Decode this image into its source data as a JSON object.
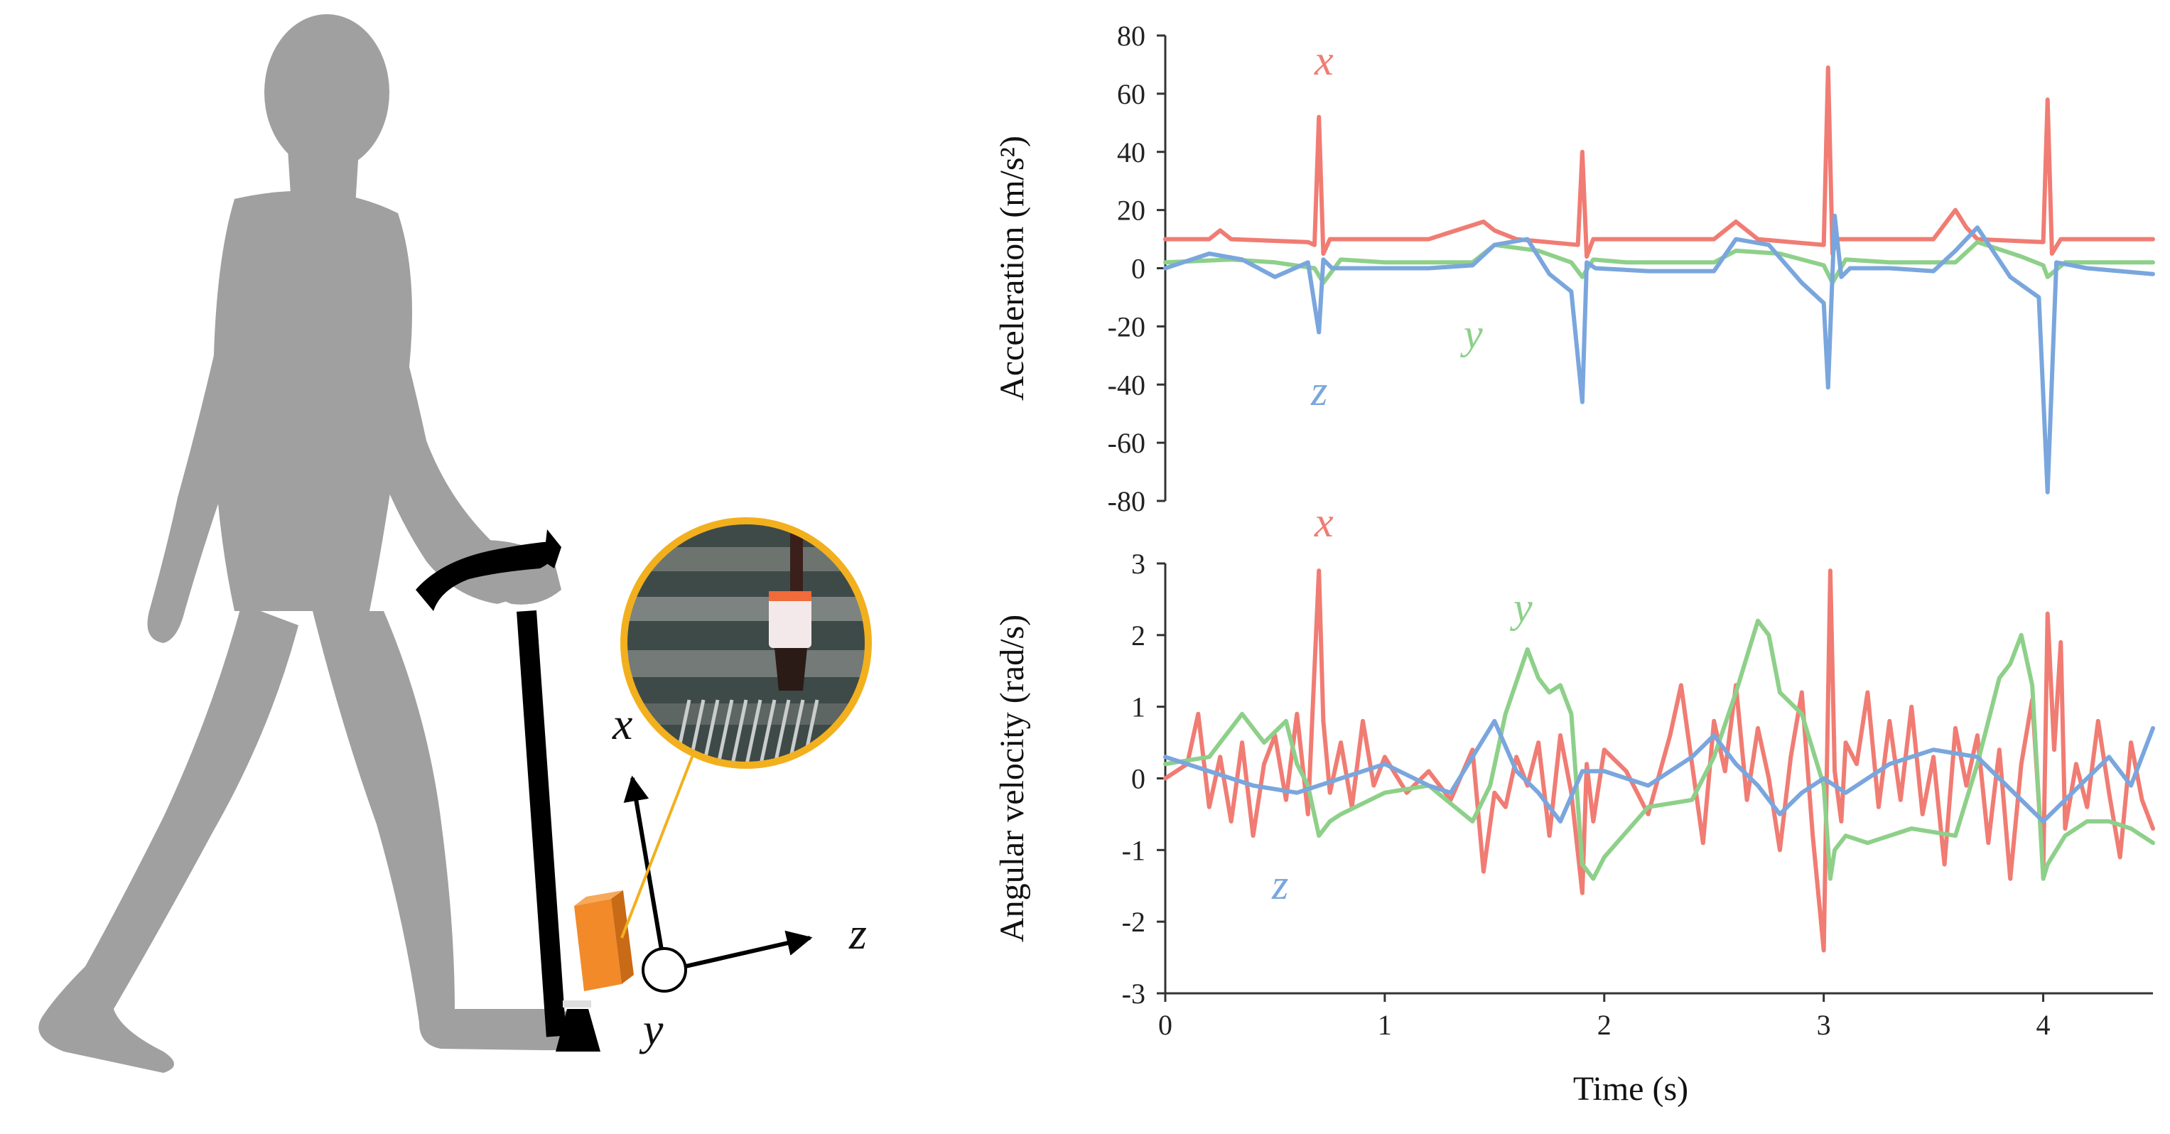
{
  "colors": {
    "x": "#f07c73",
    "y": "#8ed08a",
    "z": "#7aa6dd",
    "silhouette": "#a0a0a0",
    "sensor": "#f28a2a",
    "lens_ring": "#f2b01e"
  },
  "illustration": {
    "axis_x": "x",
    "axis_y": "y",
    "axis_z": "z",
    "icons": [
      "walking-person-silhouette",
      "cane",
      "imu-sensor",
      "photo-inset"
    ]
  },
  "chart_data": [
    {
      "type": "line",
      "ylabel": "Acceleration (m/s²)",
      "xlabel": "",
      "xlim": [
        0,
        4.5
      ],
      "ylim": [
        -80,
        80
      ],
      "yticks": [
        80,
        60,
        40,
        20,
        0,
        -20,
        -40,
        -60,
        -80
      ],
      "series_labels": [
        {
          "name": "x"
        },
        {
          "name": "y"
        },
        {
          "name": "z"
        }
      ],
      "series": [
        {
          "name": "x",
          "x": [
            0,
            0.2,
            0.25,
            0.3,
            0.65,
            0.68,
            0.7,
            0.72,
            0.75,
            1.2,
            1.45,
            1.5,
            1.6,
            1.88,
            1.9,
            1.92,
            1.95,
            2.5,
            2.6,
            2.7,
            3.0,
            3.02,
            3.04,
            3.06,
            3.1,
            3.5,
            3.6,
            3.65,
            3.7,
            4.0,
            4.02,
            4.04,
            4.08,
            4.5
          ],
          "values": [
            10,
            10,
            13,
            10,
            9,
            8,
            52,
            5,
            10,
            10,
            16,
            13,
            10,
            8,
            40,
            4,
            10,
            10,
            16,
            10,
            8,
            69,
            5,
            10,
            10,
            10,
            20,
            14,
            10,
            9,
            58,
            5,
            10,
            10
          ]
        },
        {
          "name": "y",
          "x": [
            0,
            0.3,
            0.5,
            0.68,
            0.72,
            0.8,
            1.0,
            1.4,
            1.5,
            1.7,
            1.85,
            1.9,
            1.95,
            2.1,
            2.5,
            2.6,
            2.8,
            3.0,
            3.04,
            3.1,
            3.3,
            3.6,
            3.7,
            3.9,
            4.0,
            4.02,
            4.1,
            4.5
          ],
          "values": [
            2,
            3,
            2,
            0,
            -5,
            3,
            2,
            2,
            8,
            6,
            2,
            -3,
            3,
            2,
            2,
            6,
            5,
            1,
            -5,
            3,
            2,
            2,
            9,
            4,
            1,
            -3,
            2,
            2
          ]
        },
        {
          "name": "z",
          "x": [
            0,
            0.2,
            0.35,
            0.5,
            0.65,
            0.7,
            0.72,
            0.76,
            0.9,
            1.2,
            1.4,
            1.5,
            1.65,
            1.75,
            1.85,
            1.9,
            1.92,
            1.96,
            2.2,
            2.5,
            2.6,
            2.75,
            2.9,
            3.0,
            3.02,
            3.05,
            3.08,
            3.12,
            3.3,
            3.5,
            3.6,
            3.7,
            3.85,
            3.98,
            4.02,
            4.06,
            4.2,
            4.5
          ],
          "values": [
            0,
            5,
            3,
            -3,
            2,
            -22,
            3,
            0,
            0,
            0,
            1,
            8,
            10,
            -2,
            -8,
            -46,
            2,
            0,
            -1,
            -1,
            10,
            8,
            -5,
            -12,
            -41,
            18,
            -3,
            0,
            0,
            -1,
            6,
            14,
            -3,
            -10,
            -77,
            2,
            0,
            -2
          ]
        }
      ]
    },
    {
      "type": "line",
      "ylabel": "Angular velocity (rad/s)",
      "xlabel": "Time (s)",
      "xlim": [
        0,
        4.5
      ],
      "ylim": [
        -3,
        3
      ],
      "yticks": [
        3,
        2,
        1,
        0,
        -1,
        -2,
        -3
      ],
      "xticks": [
        0,
        1,
        2,
        3,
        4
      ],
      "series_labels": [
        {
          "name": "x"
        },
        {
          "name": "y"
        },
        {
          "name": "z"
        }
      ],
      "series": [
        {
          "name": "x",
          "x": [
            0,
            0.1,
            0.15,
            0.2,
            0.25,
            0.3,
            0.35,
            0.4,
            0.45,
            0.5,
            0.55,
            0.6,
            0.65,
            0.7,
            0.72,
            0.75,
            0.8,
            0.85,
            0.9,
            0.95,
            1.0,
            1.1,
            1.2,
            1.3,
            1.4,
            1.45,
            1.5,
            1.55,
            1.6,
            1.65,
            1.7,
            1.75,
            1.8,
            1.85,
            1.9,
            1.92,
            1.95,
            2.0,
            2.1,
            2.2,
            2.3,
            2.35,
            2.4,
            2.45,
            2.5,
            2.55,
            2.6,
            2.65,
            2.7,
            2.75,
            2.8,
            2.85,
            2.9,
            2.95,
            3.0,
            3.03,
            3.05,
            3.08,
            3.1,
            3.15,
            3.2,
            3.25,
            3.3,
            3.35,
            3.4,
            3.45,
            3.5,
            3.55,
            3.6,
            3.65,
            3.7,
            3.75,
            3.8,
            3.85,
            3.9,
            3.95,
            4.0,
            4.02,
            4.05,
            4.08,
            4.1,
            4.15,
            4.2,
            4.25,
            4.3,
            4.35,
            4.4,
            4.45,
            4.5
          ],
          "values": [
            0,
            0.2,
            0.9,
            -0.4,
            0.3,
            -0.6,
            0.5,
            -0.8,
            0.2,
            0.6,
            -0.3,
            0.9,
            -0.5,
            2.9,
            0.8,
            -0.2,
            0.5,
            -0.4,
            0.8,
            -0.1,
            0.3,
            -0.2,
            0.1,
            -0.3,
            0.4,
            -1.3,
            -0.2,
            -0.4,
            0.3,
            -0.1,
            0.5,
            -0.8,
            0.6,
            -0.2,
            -1.6,
            0.2,
            -0.6,
            0.4,
            0.1,
            -0.5,
            0.6,
            1.3,
            0.2,
            -0.9,
            0.8,
            0.1,
            1.3,
            -0.3,
            0.7,
            0.0,
            -1.0,
            0.3,
            1.2,
            -0.8,
            -2.4,
            2.9,
            0.1,
            -0.6,
            0.5,
            0.2,
            1.2,
            -0.4,
            0.8,
            -0.3,
            1.0,
            -0.5,
            0.3,
            -1.2,
            0.7,
            -0.1,
            0.6,
            -0.9,
            0.4,
            -1.4,
            0.2,
            1.1,
            -1.3,
            2.3,
            0.4,
            1.9,
            -0.7,
            0.2,
            -0.4,
            0.8,
            -0.2,
            -1.1,
            0.5,
            -0.3,
            -0.7
          ]
        },
        {
          "name": "y",
          "x": [
            0,
            0.2,
            0.35,
            0.45,
            0.55,
            0.6,
            0.65,
            0.7,
            0.75,
            0.8,
            1.0,
            1.2,
            1.4,
            1.48,
            1.55,
            1.65,
            1.7,
            1.75,
            1.8,
            1.85,
            1.9,
            1.95,
            2.0,
            2.2,
            2.4,
            2.5,
            2.6,
            2.7,
            2.75,
            2.8,
            2.9,
            3.0,
            3.03,
            3.05,
            3.1,
            3.2,
            3.4,
            3.6,
            3.7,
            3.8,
            3.85,
            3.9,
            3.95,
            4.0,
            4.02,
            4.1,
            4.2,
            4.3,
            4.4,
            4.5
          ],
          "values": [
            0.2,
            0.3,
            0.9,
            0.5,
            0.8,
            0.2,
            -0.1,
            -0.8,
            -0.6,
            -0.5,
            -0.2,
            -0.1,
            -0.6,
            -0.1,
            0.9,
            1.8,
            1.4,
            1.2,
            1.3,
            0.9,
            -1.2,
            -1.4,
            -1.1,
            -0.4,
            -0.3,
            0.3,
            1.2,
            2.2,
            2.0,
            1.2,
            0.9,
            -0.1,
            -1.4,
            -1.0,
            -0.8,
            -0.9,
            -0.7,
            -0.8,
            0.2,
            1.4,
            1.6,
            2.0,
            1.3,
            -1.4,
            -1.2,
            -0.8,
            -0.6,
            -0.6,
            -0.7,
            -0.9
          ]
        },
        {
          "name": "z",
          "x": [
            0,
            0.2,
            0.4,
            0.6,
            0.8,
            1.0,
            1.2,
            1.3,
            1.4,
            1.5,
            1.6,
            1.7,
            1.8,
            1.9,
            2.0,
            2.2,
            2.4,
            2.5,
            2.6,
            2.7,
            2.8,
            2.9,
            3.0,
            3.1,
            3.3,
            3.5,
            3.7,
            3.9,
            4.0,
            4.1,
            4.2,
            4.3,
            4.4,
            4.5
          ],
          "values": [
            0.3,
            0.1,
            -0.1,
            -0.2,
            0.0,
            0.2,
            -0.1,
            -0.2,
            0.3,
            0.8,
            0.1,
            -0.2,
            -0.6,
            0.1,
            0.1,
            -0.1,
            0.3,
            0.6,
            0.2,
            -0.1,
            -0.5,
            -0.2,
            0.0,
            -0.2,
            0.2,
            0.4,
            0.3,
            -0.3,
            -0.6,
            -0.3,
            0.0,
            0.3,
            -0.1,
            0.7
          ]
        }
      ]
    }
  ]
}
